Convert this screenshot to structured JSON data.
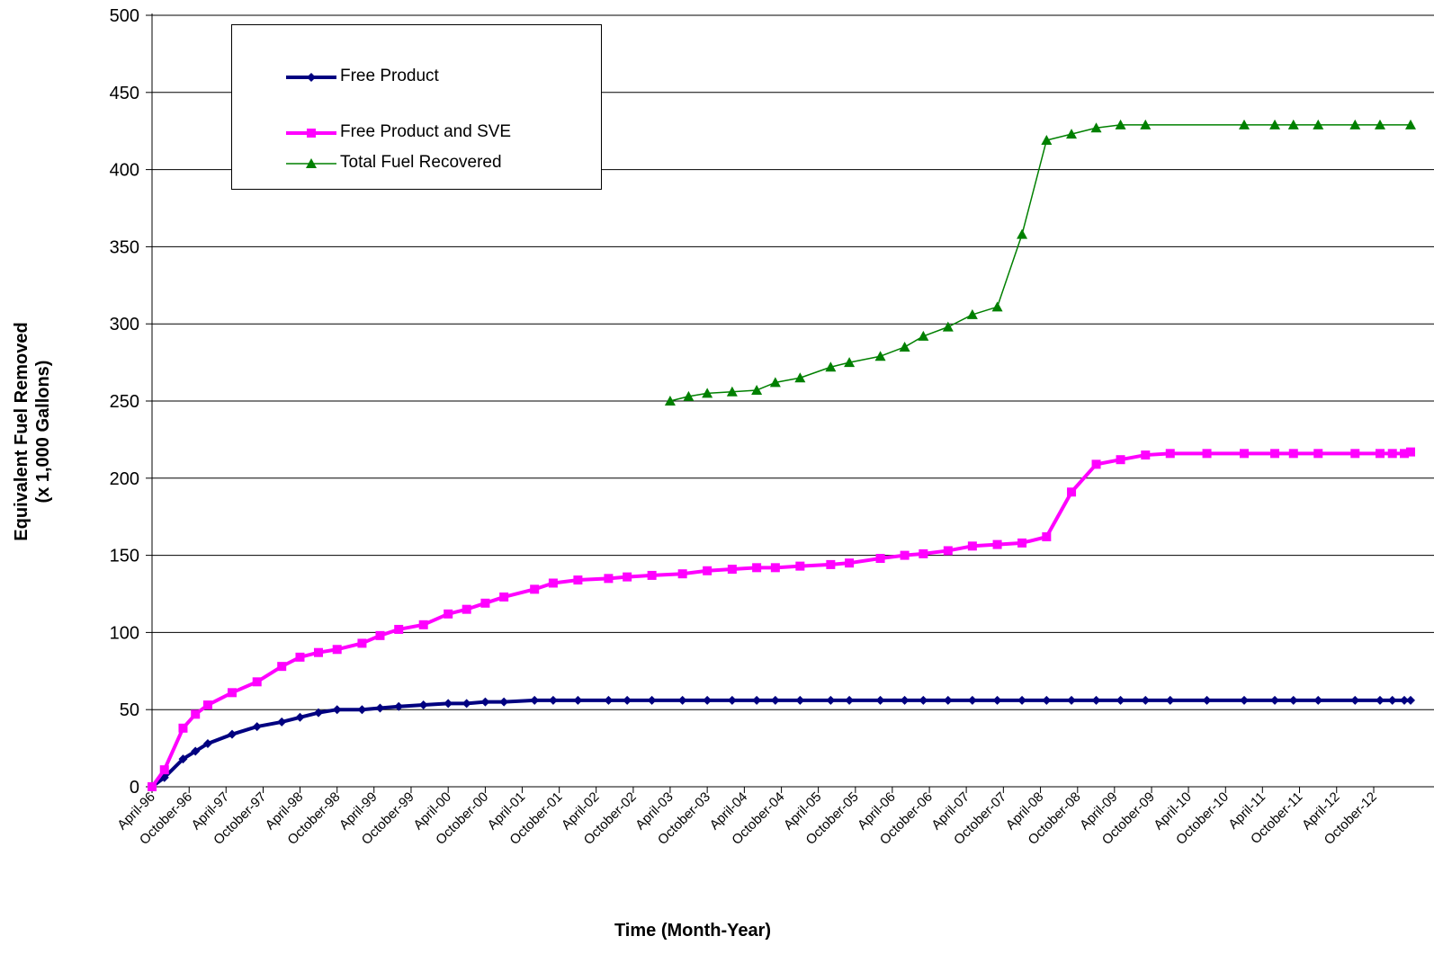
{
  "chart_data": {
    "type": "line",
    "xlabel": "Time (Month-Year)",
    "ylabel": [
      "Equivalent Fuel Removed",
      "(x 1,000 Gallons)"
    ],
    "ylim": [
      0,
      500
    ],
    "yticks": [
      0,
      50,
      100,
      150,
      200,
      250,
      300,
      350,
      400,
      450,
      500
    ],
    "xlim": [
      "1996-04-01",
      "2013-04-01"
    ],
    "xtick_labels": [
      "April-96",
      "October-96",
      "April-97",
      "October-97",
      "April-98",
      "October-98",
      "April-99",
      "October-99",
      "April-00",
      "October-00",
      "April-01",
      "October-01",
      "April-02",
      "October-02",
      "April-03",
      "October-03",
      "April-04",
      "October-04",
      "April-05",
      "October-05",
      "April-06",
      "October-06",
      "April-07",
      "October-07",
      "April-08",
      "October-08",
      "April-09",
      "October-09",
      "April-10",
      "October-10",
      "April-11",
      "October-11",
      "April-12",
      "October-12"
    ],
    "grid": "horizontal",
    "legend_position": "top-left",
    "series": [
      {
        "name": "Free Product",
        "color": "#000080",
        "marker": "diamond",
        "points": [
          [
            "1996-04-01",
            0
          ],
          [
            "1996-06-01",
            6
          ],
          [
            "1996-09-01",
            18
          ],
          [
            "1996-11-01",
            23
          ],
          [
            "1997-01-01",
            28
          ],
          [
            "1997-05-01",
            34
          ],
          [
            "1997-09-01",
            39
          ],
          [
            "1998-01-01",
            42
          ],
          [
            "1998-04-01",
            45
          ],
          [
            "1998-07-01",
            48
          ],
          [
            "1998-10-01",
            50
          ],
          [
            "1999-02-01",
            50
          ],
          [
            "1999-05-01",
            51
          ],
          [
            "1999-08-01",
            52
          ],
          [
            "1999-12-01",
            53
          ],
          [
            "2000-04-01",
            54
          ],
          [
            "2000-07-01",
            54
          ],
          [
            "2000-10-01",
            55
          ],
          [
            "2001-01-01",
            55
          ],
          [
            "2001-06-01",
            56
          ],
          [
            "2001-09-01",
            56
          ],
          [
            "2002-01-01",
            56
          ],
          [
            "2002-06-01",
            56
          ],
          [
            "2002-09-01",
            56
          ],
          [
            "2003-01-01",
            56
          ],
          [
            "2003-06-01",
            56
          ],
          [
            "2003-10-01",
            56
          ],
          [
            "2004-02-01",
            56
          ],
          [
            "2004-06-01",
            56
          ],
          [
            "2004-09-01",
            56
          ],
          [
            "2005-01-01",
            56
          ],
          [
            "2005-06-01",
            56
          ],
          [
            "2005-09-01",
            56
          ],
          [
            "2006-02-01",
            56
          ],
          [
            "2006-06-01",
            56
          ],
          [
            "2006-09-01",
            56
          ],
          [
            "2007-01-01",
            56
          ],
          [
            "2007-05-01",
            56
          ],
          [
            "2007-09-01",
            56
          ],
          [
            "2008-01-01",
            56
          ],
          [
            "2008-05-01",
            56
          ],
          [
            "2008-09-01",
            56
          ],
          [
            "2009-01-01",
            56
          ],
          [
            "2009-05-01",
            56
          ],
          [
            "2009-09-01",
            56
          ],
          [
            "2010-01-01",
            56
          ],
          [
            "2010-07-01",
            56
          ],
          [
            "2011-01-01",
            56
          ],
          [
            "2011-06-01",
            56
          ],
          [
            "2011-09-01",
            56
          ],
          [
            "2012-01-01",
            56
          ],
          [
            "2012-07-01",
            56
          ],
          [
            "2012-11-01",
            56
          ],
          [
            "2013-01-01",
            56
          ],
          [
            "2013-03-01",
            56
          ],
          [
            "2013-04-01",
            56
          ]
        ]
      },
      {
        "name": "Free Product and SVE",
        "color": "#FF00FF",
        "marker": "square",
        "points": [
          [
            "1996-04-01",
            0
          ],
          [
            "1996-06-01",
            11
          ],
          [
            "1996-09-01",
            38
          ],
          [
            "1996-11-01",
            47
          ],
          [
            "1997-01-01",
            53
          ],
          [
            "1997-05-01",
            61
          ],
          [
            "1997-09-01",
            68
          ],
          [
            "1998-01-01",
            78
          ],
          [
            "1998-04-01",
            84
          ],
          [
            "1998-07-01",
            87
          ],
          [
            "1998-10-01",
            89
          ],
          [
            "1999-02-01",
            93
          ],
          [
            "1999-05-01",
            98
          ],
          [
            "1999-08-01",
            102
          ],
          [
            "1999-12-01",
            105
          ],
          [
            "2000-04-01",
            112
          ],
          [
            "2000-07-01",
            115
          ],
          [
            "2000-10-01",
            119
          ],
          [
            "2001-01-01",
            123
          ],
          [
            "2001-06-01",
            128
          ],
          [
            "2001-09-01",
            132
          ],
          [
            "2002-01-01",
            134
          ],
          [
            "2002-06-01",
            135
          ],
          [
            "2002-09-01",
            136
          ],
          [
            "2003-01-01",
            137
          ],
          [
            "2003-06-01",
            138
          ],
          [
            "2003-10-01",
            140
          ],
          [
            "2004-02-01",
            141
          ],
          [
            "2004-06-01",
            142
          ],
          [
            "2004-09-01",
            142
          ],
          [
            "2005-01-01",
            143
          ],
          [
            "2005-06-01",
            144
          ],
          [
            "2005-09-01",
            145
          ],
          [
            "2006-02-01",
            148
          ],
          [
            "2006-06-01",
            150
          ],
          [
            "2006-09-01",
            151
          ],
          [
            "2007-01-01",
            153
          ],
          [
            "2007-05-01",
            156
          ],
          [
            "2007-09-01",
            157
          ],
          [
            "2008-01-01",
            158
          ],
          [
            "2008-05-01",
            162
          ],
          [
            "2008-09-01",
            191
          ],
          [
            "2009-01-01",
            209
          ],
          [
            "2009-05-01",
            212
          ],
          [
            "2009-09-01",
            215
          ],
          [
            "2010-01-01",
            216
          ],
          [
            "2010-07-01",
            216
          ],
          [
            "2011-01-01",
            216
          ],
          [
            "2011-06-01",
            216
          ],
          [
            "2011-09-01",
            216
          ],
          [
            "2012-01-01",
            216
          ],
          [
            "2012-07-01",
            216
          ],
          [
            "2012-11-01",
            216
          ],
          [
            "2013-01-01",
            216
          ],
          [
            "2013-03-01",
            216
          ],
          [
            "2013-04-01",
            217
          ]
        ]
      },
      {
        "name": "Total Fuel Recovered",
        "color": "#008000",
        "marker": "triangle",
        "points": [
          [
            "2003-04-01",
            250
          ],
          [
            "2003-07-01",
            253
          ],
          [
            "2003-10-01",
            255
          ],
          [
            "2004-02-01",
            256
          ],
          [
            "2004-06-01",
            257
          ],
          [
            "2004-09-01",
            262
          ],
          [
            "2005-01-01",
            265
          ],
          [
            "2005-06-01",
            272
          ],
          [
            "2005-09-01",
            275
          ],
          [
            "2006-02-01",
            279
          ],
          [
            "2006-06-01",
            285
          ],
          [
            "2006-09-01",
            292
          ],
          [
            "2007-01-01",
            298
          ],
          [
            "2007-05-01",
            306
          ],
          [
            "2007-09-01",
            311
          ],
          [
            "2008-01-01",
            358
          ],
          [
            "2008-05-01",
            419
          ],
          [
            "2008-09-01",
            423
          ],
          [
            "2009-01-01",
            427
          ],
          [
            "2009-05-01",
            429
          ],
          [
            "2009-09-01",
            429
          ],
          [
            "2011-01-01",
            429
          ],
          [
            "2011-06-01",
            429
          ],
          [
            "2011-09-01",
            429
          ],
          [
            "2012-01-01",
            429
          ],
          [
            "2012-07-01",
            429
          ],
          [
            "2012-11-01",
            429
          ],
          [
            "2013-04-01",
            429
          ]
        ]
      }
    ]
  }
}
